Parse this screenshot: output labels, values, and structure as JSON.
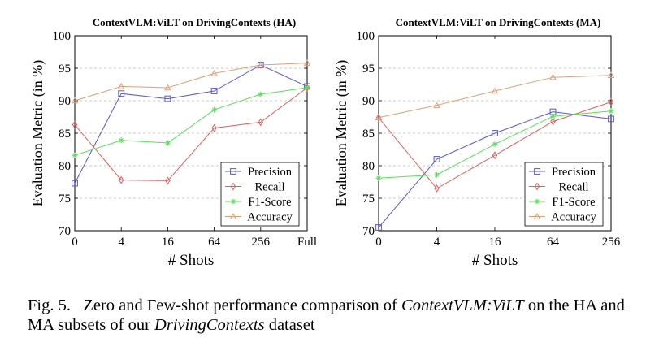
{
  "caption": {
    "label": "Fig. 5.",
    "text_a": "Zero and Few-shot performance comparison of",
    "model": "ContextVLM:ViLT",
    "text_b": "on the HA and MA subsets of our",
    "dataset": "DrivingContexts",
    "text_c": "dataset"
  },
  "colors": {
    "precision": "#5555dd",
    "recall": "#e85a5a",
    "f1": "#55e055",
    "accuracy": "#dca078",
    "grid": "#b8b8b8"
  },
  "chart_data": [
    {
      "type": "line",
      "title": "ContextVLM:ViLT on DrivingContexts (HA)",
      "xlabel": "# Shots",
      "ylabel": "Evaluation Metric (in %)",
      "categories": [
        "0",
        "4",
        "16",
        "64",
        "256",
        "Full"
      ],
      "ylim": [
        70,
        100
      ],
      "yticks": [
        70,
        75,
        80,
        85,
        90,
        95,
        100
      ],
      "grid": "horizontal-dashed",
      "legend_position": "bottom-right",
      "series": [
        {
          "name": "Precision",
          "marker": "square",
          "color_key": "precision",
          "values": [
            77.3,
            91.1,
            90.3,
            91.5,
            95.5,
            92.2
          ]
        },
        {
          "name": "Recall",
          "marker": "diamond",
          "color_key": "recall",
          "values": [
            86.3,
            77.8,
            77.7,
            85.8,
            86.7,
            92.0
          ]
        },
        {
          "name": "F1-Score",
          "marker": "star",
          "color_key": "f1",
          "values": [
            81.6,
            83.9,
            83.5,
            88.6,
            91.0,
            92.0
          ]
        },
        {
          "name": "Accuracy",
          "marker": "triangle",
          "color_key": "accuracy",
          "values": [
            90.0,
            92.2,
            92.0,
            94.2,
            95.5,
            95.8
          ]
        }
      ]
    },
    {
      "type": "line",
      "title": "ContextVLM:ViLT on DrivingContexts (MA)",
      "xlabel": "# Shots",
      "ylabel": "Evaluation Metric (in %)",
      "categories": [
        "0",
        "4",
        "16",
        "64",
        "256"
      ],
      "ylim": [
        70,
        100
      ],
      "yticks": [
        70,
        75,
        80,
        85,
        90,
        95,
        100
      ],
      "grid": "horizontal-dashed",
      "legend_position": "bottom-right",
      "series": [
        {
          "name": "Precision",
          "marker": "square",
          "color_key": "precision",
          "values": [
            70.5,
            81.0,
            85.0,
            88.3,
            87.2
          ]
        },
        {
          "name": "Recall",
          "marker": "diamond",
          "color_key": "recall",
          "values": [
            87.4,
            76.5,
            81.6,
            86.8,
            89.8
          ]
        },
        {
          "name": "F1-Score",
          "marker": "star",
          "color_key": "f1",
          "values": [
            78.1,
            78.6,
            83.3,
            87.6,
            88.4
          ]
        },
        {
          "name": "Accuracy",
          "marker": "triangle",
          "color_key": "accuracy",
          "values": [
            87.4,
            89.3,
            91.5,
            93.6,
            93.9
          ]
        }
      ]
    }
  ]
}
